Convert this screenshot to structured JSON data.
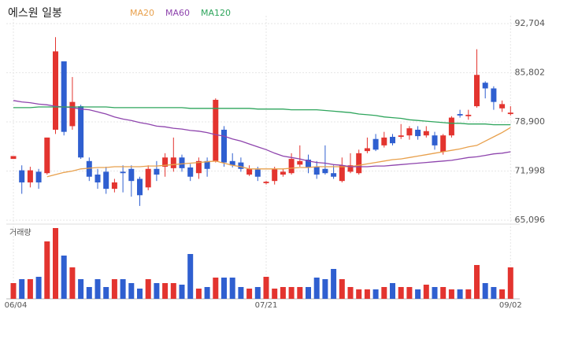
{
  "chart_data": {
    "type": "candlestick",
    "title": "에스원 일봉",
    "categories": [
      "06/04",
      null,
      null,
      null,
      null,
      null,
      null,
      null,
      null,
      null,
      null,
      null,
      null,
      null,
      null,
      null,
      null,
      null,
      null,
      null,
      null,
      null,
      null,
      null,
      null,
      null,
      null,
      null,
      null,
      null,
      "07/21",
      null,
      null,
      null,
      null,
      null,
      null,
      null,
      null,
      null,
      null,
      null,
      null,
      null,
      null,
      null,
      null,
      null,
      null,
      null,
      null,
      null,
      null,
      null,
      null,
      null,
      null,
      null,
      null,
      "09/02"
    ],
    "open": [
      73700,
      72100,
      70400,
      71900,
      71700,
      77800,
      87400,
      78300,
      81100,
      73400,
      71500,
      71900,
      69500,
      71900,
      72300,
      70900,
      69700,
      72300,
      72600,
      72400,
      73900,
      72500,
      71700,
      73400,
      73400,
      77800,
      73400,
      73200,
      71500,
      72200,
      70300,
      70600,
      71500,
      71700,
      72900,
      73600,
      72600,
      72300,
      71700,
      70600,
      71900,
      71700,
      74800,
      76500,
      75600,
      76800,
      76800,
      77000,
      77800,
      77000,
      77000,
      74700,
      77000,
      80000,
      79700,
      81100,
      84400,
      83600,
      80800,
      80000
    ],
    "high": [
      74100,
      72800,
      72600,
      72300,
      76700,
      90800,
      87400,
      85200,
      81300,
      73900,
      72300,
      72600,
      70900,
      72800,
      72800,
      71200,
      72800,
      73400,
      74500,
      76700,
      74300,
      73000,
      73900,
      73900,
      82200,
      78300,
      74500,
      73900,
      72800,
      72600,
      70600,
      72600,
      72300,
      74500,
      75600,
      74300,
      73400,
      75600,
      72800,
      73900,
      74500,
      75000,
      76700,
      77200,
      77500,
      77200,
      78600,
      78300,
      78300,
      78300,
      77500,
      77200,
      79700,
      80600,
      80600,
      89100,
      84600,
      83900,
      81900,
      81100
    ],
    "low": [
      73700,
      68800,
      69700,
      69500,
      71500,
      77200,
      77000,
      77800,
      73700,
      70600,
      69500,
      68800,
      69000,
      69000,
      68400,
      67100,
      69300,
      70600,
      71200,
      71900,
      71900,
      70600,
      70900,
      71200,
      73200,
      72600,
      72500,
      71900,
      71300,
      70600,
      70100,
      70100,
      71200,
      71500,
      72600,
      71700,
      70900,
      71500,
      70900,
      70400,
      71700,
      71500,
      74500,
      74800,
      75300,
      75600,
      76500,
      76400,
      76400,
      76700,
      75000,
      74300,
      76700,
      79500,
      79200,
      80900,
      82200,
      80600,
      80300,
      79800
    ],
    "close": [
      74100,
      70400,
      72100,
      70400,
      76700,
      88800,
      77500,
      81700,
      73900,
      71200,
      70400,
      69500,
      70400,
      71700,
      70600,
      68600,
      72300,
      71500,
      73900,
      73900,
      72400,
      71200,
      73400,
      72300,
      82000,
      73200,
      72800,
      72300,
      72300,
      71200,
      70500,
      72300,
      71900,
      73700,
      73400,
      72500,
      71500,
      71700,
      71200,
      72800,
      72800,
      74500,
      75200,
      75000,
      76700,
      75900,
      77000,
      78000,
      76900,
      77600,
      75600,
      77000,
      79500,
      79800,
      79900,
      85500,
      83600,
      81700,
      81400,
      80200
    ],
    "volume": [
      20,
      25,
      25,
      28,
      73,
      90,
      55,
      40,
      25,
      15,
      25,
      15,
      25,
      25,
      20,
      13,
      25,
      20,
      20,
      20,
      18,
      57,
      13,
      15,
      27,
      27,
      27,
      15,
      13,
      15,
      28,
      13,
      15,
      15,
      15,
      15,
      27,
      25,
      38,
      25,
      15,
      12,
      12,
      12,
      15,
      20,
      15,
      15,
      12,
      18,
      15,
      15,
      12,
      12,
      12,
      43,
      20,
      15,
      12,
      40
    ],
    "volume_label": "거래량",
    "up_color": "#e3342f",
    "down_color": "#2f5fd0",
    "series": [
      {
        "name": "MA20",
        "color": "#e8a04c",
        "values": [
          null,
          null,
          null,
          null,
          71200,
          71500,
          71800,
          72000,
          72300,
          72400,
          72500,
          72500,
          72600,
          72600,
          72600,
          72600,
          72700,
          72700,
          72800,
          72900,
          73000,
          73100,
          73200,
          73300,
          73400,
          73100,
          72800,
          72600,
          72300,
          72300,
          72300,
          72300,
          72300,
          72400,
          72500,
          72500,
          72600,
          72600,
          72600,
          72600,
          72600,
          72800,
          73000,
          73200,
          73400,
          73600,
          73700,
          73900,
          74100,
          74300,
          74500,
          74700,
          74900,
          75100,
          75400,
          75600,
          76200,
          76800,
          77400,
          78100
        ]
      },
      {
        "name": "MA60",
        "color": "#8e44ad",
        "values": [
          81900,
          81700,
          81600,
          81400,
          81300,
          81100,
          81000,
          80900,
          80700,
          80600,
          80300,
          80000,
          79600,
          79300,
          79100,
          78800,
          78600,
          78300,
          78200,
          78000,
          77900,
          77700,
          77600,
          77400,
          77100,
          76900,
          76500,
          76200,
          75800,
          75400,
          75000,
          74500,
          74100,
          73900,
          73700,
          73400,
          73200,
          73100,
          72900,
          72800,
          72600,
          72600,
          72600,
          72700,
          72700,
          72800,
          72900,
          73000,
          73100,
          73200,
          73300,
          73400,
          73500,
          73700,
          73900,
          74000,
          74200,
          74400,
          74500,
          74700
        ]
      },
      {
        "name": "MA120",
        "color": "#2ea55c",
        "values": [
          80900,
          80900,
          80900,
          81000,
          81000,
          81000,
          81000,
          81000,
          81000,
          81000,
          81000,
          81000,
          80900,
          80900,
          80900,
          80900,
          80900,
          80900,
          80900,
          80900,
          80900,
          80800,
          80800,
          80800,
          80800,
          80800,
          80800,
          80800,
          80800,
          80700,
          80700,
          80700,
          80700,
          80600,
          80600,
          80600,
          80600,
          80500,
          80400,
          80300,
          80200,
          80000,
          79900,
          79800,
          79600,
          79500,
          79400,
          79200,
          79100,
          79000,
          78900,
          78800,
          78700,
          78700,
          78600,
          78600,
          78600,
          78500,
          78500,
          78500
        ]
      }
    ],
    "ylim": [
      65096,
      92704
    ],
    "yticks": [
      {
        "value": 65096,
        "label": "65,096"
      },
      {
        "value": 71998,
        "label": "71,998"
      },
      {
        "value": 78900,
        "label": "78,900"
      },
      {
        "value": 85802,
        "label": "85,802"
      },
      {
        "value": 92704,
        "label": "92,704"
      }
    ],
    "grid": true
  }
}
